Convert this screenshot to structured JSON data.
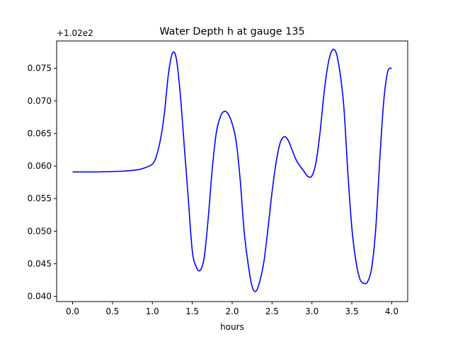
{
  "chart_data": {
    "type": "line",
    "title": "Water Depth h at gauge 135",
    "xlabel": "hours",
    "ylabel": "",
    "y_offset_label": "+1.02e2",
    "xlim": [
      -0.2,
      4.2
    ],
    "ylim": [
      0.0392,
      0.0792
    ],
    "x_ticks": [
      0.0,
      0.5,
      1.0,
      1.5,
      2.0,
      2.5,
      3.0,
      3.5,
      4.0
    ],
    "x_tick_labels": [
      "0.0",
      "0.5",
      "1.0",
      "1.5",
      "2.0",
      "2.5",
      "3.0",
      "3.5",
      "4.0"
    ],
    "y_ticks": [
      0.04,
      0.045,
      0.05,
      0.055,
      0.06,
      0.065,
      0.07,
      0.075
    ],
    "y_tick_labels": [
      "0.040",
      "0.045",
      "0.050",
      "0.055",
      "0.060",
      "0.065",
      "0.070",
      "0.075"
    ],
    "grid": false,
    "series": [
      {
        "color": "#0000ff",
        "x": [
          0.0,
          0.3,
          0.6,
          0.8,
          0.9,
          1.0,
          1.05,
          1.1,
          1.15,
          1.2,
          1.25,
          1.3,
          1.35,
          1.4,
          1.45,
          1.5,
          1.55,
          1.6,
          1.65,
          1.7,
          1.75,
          1.8,
          1.85,
          1.9,
          1.95,
          2.0,
          2.05,
          2.1,
          2.15,
          2.2,
          2.25,
          2.3,
          2.35,
          2.4,
          2.45,
          2.5,
          2.55,
          2.6,
          2.65,
          2.7,
          2.75,
          2.8,
          2.85,
          2.9,
          2.95,
          3.0,
          3.05,
          3.1,
          3.15,
          3.2,
          3.25,
          3.3,
          3.35,
          3.4,
          3.45,
          3.5,
          3.55,
          3.6,
          3.65,
          3.7,
          3.75,
          3.8,
          3.85,
          3.9,
          3.95,
          4.0
        ],
        "y": [
          0.0591,
          0.0591,
          0.0592,
          0.0594,
          0.0597,
          0.0603,
          0.0615,
          0.064,
          0.068,
          0.074,
          0.0773,
          0.0765,
          0.071,
          0.063,
          0.055,
          0.047,
          0.0445,
          0.044,
          0.046,
          0.052,
          0.0595,
          0.065,
          0.0675,
          0.0684,
          0.068,
          0.0665,
          0.0638,
          0.058,
          0.05,
          0.045,
          0.0415,
          0.0408,
          0.0425,
          0.0455,
          0.0505,
          0.056,
          0.0605,
          0.0635,
          0.0645,
          0.064,
          0.0625,
          0.061,
          0.06,
          0.0592,
          0.0584,
          0.0585,
          0.0605,
          0.065,
          0.071,
          0.0755,
          0.0777,
          0.0775,
          0.0745,
          0.069,
          0.059,
          0.0505,
          0.0455,
          0.0427,
          0.042,
          0.0423,
          0.0445,
          0.0505,
          0.061,
          0.07,
          0.0745,
          0.075
        ]
      }
    ]
  }
}
